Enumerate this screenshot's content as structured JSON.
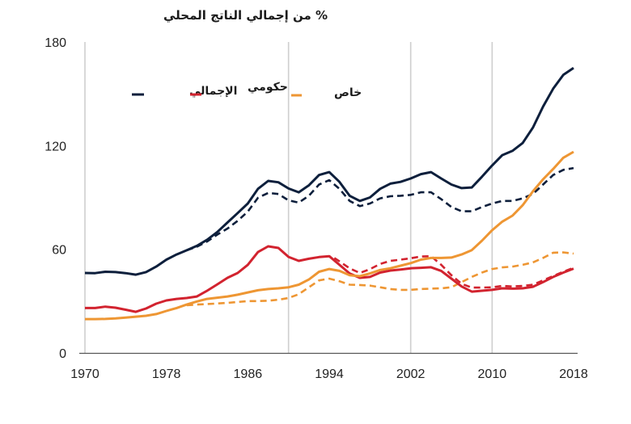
{
  "chart_data": {
    "type": "line",
    "title": "% من إجمالي الناتج المحلي",
    "xlabel": "",
    "ylabel": "% من إجمالي الناتج المحلي",
    "xlim": [
      1970,
      2018
    ],
    "ylim": [
      0,
      180
    ],
    "x_ticks": [
      1970,
      1978,
      1986,
      1994,
      2002,
      2010,
      2018
    ],
    "y_ticks": [
      0,
      60,
      120,
      180
    ],
    "vertical_reference_lines": [
      1970,
      1990,
      2002,
      2010
    ],
    "grid": false,
    "legend": {
      "placement": "top-left",
      "entries": [
        {
          "label": "الإجمالي",
          "color": "#0d1f3c"
        },
        {
          "label": "حكومي",
          "color": "#d2232f"
        },
        {
          "label": "خاص",
          "color": "#ee9633"
        }
      ]
    },
    "series": [
      {
        "name": "الإجمالي",
        "style": "solid",
        "color": "#0d1f3c",
        "points": [
          [
            1970,
            46.3
          ],
          [
            1971,
            46.2
          ],
          [
            1972,
            47
          ],
          [
            1973,
            46.8
          ],
          [
            1974,
            46.2
          ],
          [
            1975,
            45.3
          ],
          [
            1976,
            46.8
          ],
          [
            1977,
            50
          ],
          [
            1978,
            54
          ],
          [
            1979,
            57
          ],
          [
            1980,
            59.4
          ],
          [
            1981,
            62
          ],
          [
            1982,
            65.5
          ],
          [
            1983,
            70
          ],
          [
            1984,
            75.5
          ],
          [
            1985,
            81
          ],
          [
            1986,
            86.5
          ],
          [
            1987,
            95
          ],
          [
            1988,
            99.6
          ],
          [
            1989,
            98.8
          ],
          [
            1990,
            95.2
          ],
          [
            1991,
            93
          ],
          [
            1992,
            97
          ],
          [
            1993,
            103
          ],
          [
            1994,
            104.7
          ],
          [
            1995,
            99
          ],
          [
            1996,
            91
          ],
          [
            1997,
            88
          ],
          [
            1998,
            90
          ],
          [
            1999,
            95
          ],
          [
            2000,
            98
          ],
          [
            2001,
            99
          ],
          [
            2002,
            101
          ],
          [
            2003,
            103.5
          ],
          [
            2004,
            104.7
          ],
          [
            2005,
            101
          ],
          [
            2006,
            97.5
          ],
          [
            2007,
            95.4
          ],
          [
            2008,
            95.8
          ],
          [
            2009,
            102
          ],
          [
            2010,
            108.5
          ],
          [
            2011,
            114.5
          ],
          [
            2012,
            117
          ],
          [
            2013,
            121.5
          ],
          [
            2014,
            130.4
          ],
          [
            2015,
            142.6
          ],
          [
            2016,
            153
          ],
          [
            2017,
            161
          ],
          [
            2018,
            165
          ]
        ]
      },
      {
        "name": "الإجمالي (متقطع)",
        "style": "dashed",
        "color": "#0d1f3c",
        "points": [
          [
            1980,
            59.4
          ],
          [
            1981,
            61.5
          ],
          [
            1982,
            64.5
          ],
          [
            1983,
            68.5
          ],
          [
            1984,
            72
          ],
          [
            1985,
            76.5
          ],
          [
            1986,
            81.8
          ],
          [
            1987,
            89.8
          ],
          [
            1988,
            92.6
          ],
          [
            1989,
            92
          ],
          [
            1990,
            88.3
          ],
          [
            1991,
            87
          ],
          [
            1992,
            91
          ],
          [
            1993,
            97.5
          ],
          [
            1994,
            100
          ],
          [
            1995,
            95
          ],
          [
            1996,
            88
          ],
          [
            1997,
            85
          ],
          [
            1998,
            86.5
          ],
          [
            1999,
            89.5
          ],
          [
            2000,
            90.7
          ],
          [
            2001,
            91
          ],
          [
            2002,
            91.5
          ],
          [
            2003,
            93
          ],
          [
            2004,
            93
          ],
          [
            2005,
            89
          ],
          [
            2006,
            84.5
          ],
          [
            2007,
            82
          ],
          [
            2008,
            82
          ],
          [
            2009,
            84.5
          ],
          [
            2010,
            86.5
          ],
          [
            2011,
            88
          ],
          [
            2012,
            88
          ],
          [
            2013,
            89.5
          ],
          [
            2014,
            92
          ],
          [
            2015,
            97.5
          ],
          [
            2016,
            103
          ],
          [
            2017,
            106
          ],
          [
            2018,
            107
          ]
        ]
      },
      {
        "name": "حكومي",
        "style": "solid",
        "color": "#d2232f",
        "points": [
          [
            1970,
            26
          ],
          [
            1971,
            26
          ],
          [
            1972,
            26.8
          ],
          [
            1973,
            26.2
          ],
          [
            1974,
            25
          ],
          [
            1975,
            23.8
          ],
          [
            1976,
            25.7
          ],
          [
            1977,
            28.5
          ],
          [
            1978,
            30.4
          ],
          [
            1979,
            31.3
          ],
          [
            1980,
            31.8
          ],
          [
            1981,
            32.7
          ],
          [
            1982,
            36
          ],
          [
            1983,
            39.7
          ],
          [
            1984,
            43.5
          ],
          [
            1985,
            46.3
          ],
          [
            1986,
            51
          ],
          [
            1987,
            58.4
          ],
          [
            1988,
            61.7
          ],
          [
            1989,
            60.8
          ],
          [
            1990,
            55.6
          ],
          [
            1991,
            53.3
          ],
          [
            1992,
            54.5
          ],
          [
            1993,
            55.5
          ],
          [
            1994,
            56
          ],
          [
            1995,
            51
          ],
          [
            1996,
            46
          ],
          [
            1997,
            43.5
          ],
          [
            1998,
            44
          ],
          [
            1999,
            46.5
          ],
          [
            2000,
            47.7
          ],
          [
            2001,
            48.3
          ],
          [
            2002,
            49
          ],
          [
            2003,
            49.3
          ],
          [
            2004,
            49.6
          ],
          [
            2005,
            47.5
          ],
          [
            2006,
            43
          ],
          [
            2007,
            38.5
          ],
          [
            2008,
            35.5
          ],
          [
            2009,
            36
          ],
          [
            2010,
            36.5
          ],
          [
            2011,
            37.4
          ],
          [
            2012,
            37.2
          ],
          [
            2013,
            37.4
          ],
          [
            2014,
            38.3
          ],
          [
            2015,
            41
          ],
          [
            2016,
            44
          ],
          [
            2017,
            46.5
          ],
          [
            2018,
            48.8
          ]
        ]
      },
      {
        "name": "حكومي (متقطع)",
        "style": "dashed",
        "color": "#d2232f",
        "points": [
          [
            1994.5,
            55
          ],
          [
            1995,
            53
          ],
          [
            1996,
            49
          ],
          [
            1997,
            46.3
          ],
          [
            1998,
            48.5
          ],
          [
            1999,
            51.5
          ],
          [
            2000,
            53.3
          ],
          [
            2001,
            54
          ],
          [
            2002,
            54.8
          ],
          [
            2003,
            55.8
          ],
          [
            2004,
            56
          ],
          [
            2005,
            51
          ],
          [
            2006,
            45
          ],
          [
            2007,
            40
          ],
          [
            2008,
            37.8
          ],
          [
            2009,
            37.8
          ],
          [
            2010,
            38
          ],
          [
            2011,
            38.8
          ],
          [
            2012,
            38.5
          ],
          [
            2013,
            38.8
          ],
          [
            2014,
            39.5
          ],
          [
            2015,
            42
          ],
          [
            2016,
            44.5
          ],
          [
            2017,
            47
          ],
          [
            2018,
            49.3
          ]
        ]
      },
      {
        "name": "خاص",
        "style": "solid",
        "color": "#ee9633",
        "points": [
          [
            1970,
            19.6
          ],
          [
            1971,
            19.6
          ],
          [
            1972,
            19.7
          ],
          [
            1973,
            20
          ],
          [
            1974,
            20.5
          ],
          [
            1975,
            21
          ],
          [
            1976,
            21.5
          ],
          [
            1977,
            22.5
          ],
          [
            1978,
            24.3
          ],
          [
            1979,
            26
          ],
          [
            1980,
            28
          ],
          [
            1981,
            29.8
          ],
          [
            1982,
            31.3
          ],
          [
            1983,
            32
          ],
          [
            1984,
            32.7
          ],
          [
            1985,
            33.7
          ],
          [
            1986,
            35
          ],
          [
            1987,
            36.3
          ],
          [
            1988,
            37
          ],
          [
            1989,
            37.4
          ],
          [
            1990,
            38
          ],
          [
            1991,
            39.5
          ],
          [
            1992,
            42.5
          ],
          [
            1993,
            47
          ],
          [
            1994,
            48.6
          ],
          [
            1995,
            47.5
          ],
          [
            1996,
            45
          ],
          [
            1997,
            44.4
          ],
          [
            1998,
            46
          ],
          [
            1999,
            48
          ],
          [
            2000,
            49
          ],
          [
            2001,
            50.5
          ],
          [
            2002,
            52
          ],
          [
            2003,
            54
          ],
          [
            2004,
            55
          ],
          [
            2005,
            55
          ],
          [
            2006,
            55.2
          ],
          [
            2007,
            57
          ],
          [
            2008,
            59.5
          ],
          [
            2009,
            65
          ],
          [
            2010,
            71
          ],
          [
            2011,
            76
          ],
          [
            2012,
            79.5
          ],
          [
            2013,
            85.5
          ],
          [
            2014,
            93.5
          ],
          [
            2015,
            100.5
          ],
          [
            2016,
            106.5
          ],
          [
            2017,
            113
          ],
          [
            2018,
            116.4
          ]
        ]
      },
      {
        "name": "خاص (متقطع)",
        "style": "dashed",
        "color": "#ee9633",
        "points": [
          [
            1980,
            27.6
          ],
          [
            1981,
            28
          ],
          [
            1982,
            28.3
          ],
          [
            1983,
            28.6
          ],
          [
            1984,
            29
          ],
          [
            1985,
            29.5
          ],
          [
            1986,
            30
          ],
          [
            1987,
            30
          ],
          [
            1988,
            30.2
          ],
          [
            1989,
            30.8
          ],
          [
            1990,
            31.8
          ],
          [
            1991,
            34
          ],
          [
            1992,
            38
          ],
          [
            1993,
            42
          ],
          [
            1994,
            43
          ],
          [
            1995,
            41.5
          ],
          [
            1996,
            39.5
          ],
          [
            1997,
            39.3
          ],
          [
            1998,
            39
          ],
          [
            1999,
            38
          ],
          [
            2000,
            37
          ],
          [
            2001,
            36.5
          ],
          [
            2002,
            36.5
          ],
          [
            2003,
            37
          ],
          [
            2004,
            37.2
          ],
          [
            2005,
            37.4
          ],
          [
            2006,
            38
          ],
          [
            2007,
            41
          ],
          [
            2008,
            44
          ],
          [
            2009,
            46.5
          ],
          [
            2010,
            48.6
          ],
          [
            2011,
            49.5
          ],
          [
            2012,
            50
          ],
          [
            2013,
            51
          ],
          [
            2014,
            52.4
          ],
          [
            2015,
            55
          ],
          [
            2016,
            58
          ],
          [
            2017,
            58.2
          ],
          [
            2018,
            57.5
          ]
        ]
      }
    ]
  }
}
